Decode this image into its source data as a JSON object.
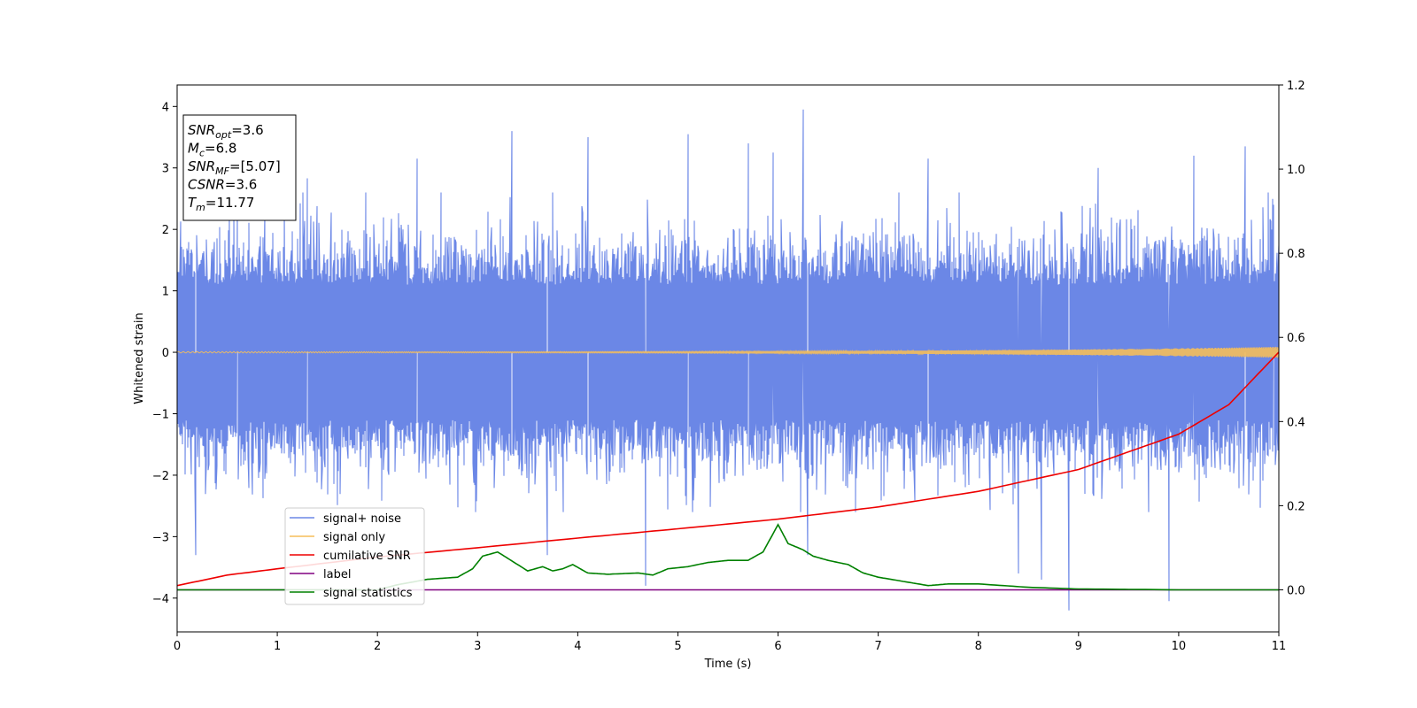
{
  "chart_data": {
    "type": "line",
    "xlabel": "Time (s)",
    "ylabel": "Whitened strain",
    "xlim": [
      0,
      11
    ],
    "ylim_left": [
      -4.55,
      4.35
    ],
    "ylim_right": [
      -0.1,
      1.2
    ],
    "x_ticks": [
      0,
      1,
      2,
      3,
      4,
      5,
      6,
      7,
      8,
      9,
      10,
      11
    ],
    "y_ticks_left": [
      -4,
      -3,
      -2,
      -1,
      0,
      1,
      2,
      3,
      4
    ],
    "y_ticks_right": [
      0.0,
      0.2,
      0.4,
      0.6,
      0.8,
      1.0,
      1.2
    ],
    "grid": false,
    "legend_position": "lower-left",
    "info_box": {
      "position": "top-left",
      "lines": [
        {
          "main": "SNR",
          "sub": "opt",
          "value": "=3.6"
        },
        {
          "main": "M",
          "sub": "c",
          "value": "=6.8"
        },
        {
          "main": "SNR",
          "sub": "MF",
          "value": "=[5.07]"
        },
        {
          "main": "CSNR",
          "sub": "",
          "value": "=3.6"
        },
        {
          "main": "T",
          "sub": "m",
          "value": "=11.77"
        }
      ]
    },
    "series": [
      {
        "name": "signal+ noise",
        "color": "#6b87e6",
        "axis": "left",
        "kind": "noise",
        "envelope": {
          "typical_max": 2.0,
          "typical_min": -2.0
        },
        "peaks": [
          [
            0.19,
            -3.3
          ],
          [
            0.6,
            2.4
          ],
          [
            1.3,
            2.83
          ],
          [
            2.4,
            3.15
          ],
          [
            3.34,
            3.6
          ],
          [
            3.7,
            -3.3
          ],
          [
            4.1,
            3.5
          ],
          [
            4.68,
            -3.8
          ],
          [
            5.1,
            3.55
          ],
          [
            5.7,
            3.4
          ],
          [
            5.95,
            3.25
          ],
          [
            6.25,
            3.95
          ],
          [
            6.3,
            -3.3
          ],
          [
            7.5,
            3.15
          ],
          [
            8.4,
            -3.6
          ],
          [
            8.63,
            -3.7
          ],
          [
            8.9,
            -4.2
          ],
          [
            9.2,
            3.0
          ],
          [
            9.9,
            -4.05
          ],
          [
            10.15,
            3.2
          ],
          [
            10.66,
            3.35
          ],
          [
            10.95,
            2.4
          ]
        ]
      },
      {
        "name": "signal only",
        "color": "#f5be5a",
        "axis": "left",
        "kind": "chirp",
        "amp_start": 0.01,
        "amp_end": 0.09
      },
      {
        "name": "cumilative SNR",
        "color": "#ee0000",
        "axis": "right",
        "kind": "line",
        "points": [
          [
            0,
            0.01
          ],
          [
            0.5,
            0.035
          ],
          [
            1,
            0.05
          ],
          [
            2,
            0.078
          ],
          [
            3,
            0.1
          ],
          [
            4,
            0.123
          ],
          [
            5,
            0.145
          ],
          [
            6,
            0.168
          ],
          [
            7,
            0.197
          ],
          [
            8,
            0.234
          ],
          [
            9,
            0.286
          ],
          [
            10,
            0.37
          ],
          [
            10.5,
            0.44
          ],
          [
            11,
            0.565
          ]
        ]
      },
      {
        "name": "label",
        "color": "#800080",
        "axis": "right",
        "kind": "line",
        "points": [
          [
            0,
            0.0
          ],
          [
            11,
            0.0
          ]
        ]
      },
      {
        "name": "signal statistics",
        "color": "#008000",
        "axis": "right",
        "kind": "line",
        "points": [
          [
            0,
            0.0
          ],
          [
            1,
            0.0
          ],
          [
            2,
            0.0
          ],
          [
            2.2,
            0.012
          ],
          [
            2.5,
            0.025
          ],
          [
            2.8,
            0.03
          ],
          [
            2.95,
            0.05
          ],
          [
            3.05,
            0.08
          ],
          [
            3.2,
            0.09
          ],
          [
            3.3,
            0.075
          ],
          [
            3.5,
            0.045
          ],
          [
            3.65,
            0.055
          ],
          [
            3.75,
            0.045
          ],
          [
            3.85,
            0.05
          ],
          [
            3.95,
            0.06
          ],
          [
            4.1,
            0.04
          ],
          [
            4.3,
            0.037
          ],
          [
            4.6,
            0.04
          ],
          [
            4.75,
            0.035
          ],
          [
            4.9,
            0.05
          ],
          [
            5.1,
            0.055
          ],
          [
            5.3,
            0.065
          ],
          [
            5.5,
            0.07
          ],
          [
            5.7,
            0.07
          ],
          [
            5.85,
            0.09
          ],
          [
            6.0,
            0.155
          ],
          [
            6.1,
            0.11
          ],
          [
            6.25,
            0.095
          ],
          [
            6.35,
            0.08
          ],
          [
            6.5,
            0.07
          ],
          [
            6.7,
            0.06
          ],
          [
            6.85,
            0.04
          ],
          [
            7.0,
            0.03
          ],
          [
            7.3,
            0.018
          ],
          [
            7.5,
            0.01
          ],
          [
            7.7,
            0.014
          ],
          [
            8.0,
            0.014
          ],
          [
            8.5,
            0.006
          ],
          [
            9.0,
            0.002
          ],
          [
            10.0,
            0.0
          ],
          [
            11.0,
            0.0
          ]
        ]
      }
    ]
  }
}
